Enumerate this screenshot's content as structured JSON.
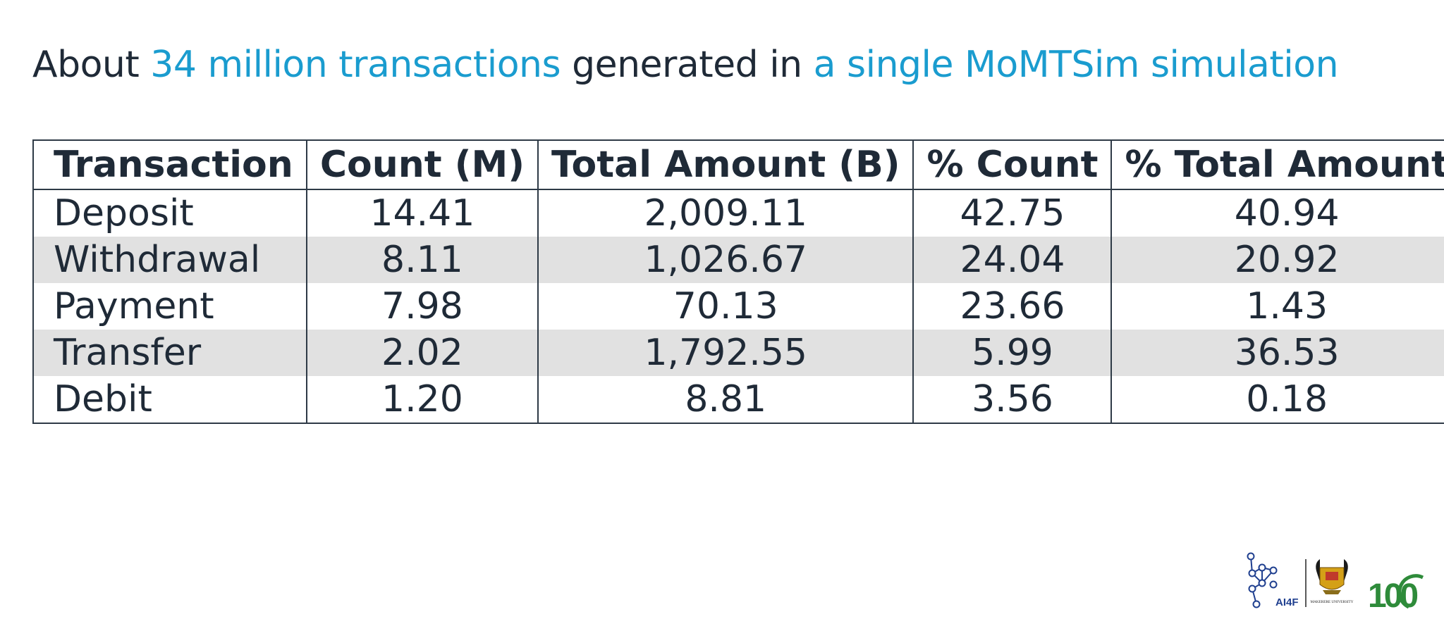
{
  "title": {
    "prefix": "About",
    "highlight1": "34 million transactions",
    "middle": "generated in",
    "highlight2": "a single MoMTSim simulation"
  },
  "table": {
    "headers": [
      "Transaction",
      "Count (M)",
      "Total Amount (B)",
      "% Count",
      "% Total Amount"
    ],
    "rows": [
      [
        "Deposit",
        "14.41",
        "2,009.11",
        "42.75",
        "40.94"
      ],
      [
        "Withdrawal",
        "8.11",
        "1,026.67",
        "24.04",
        "20.92"
      ],
      [
        "Payment",
        "7.98",
        "70.13",
        "23.66",
        "1.43"
      ],
      [
        "Transfer",
        "2.02",
        "1,792.55",
        "5.99",
        "36.53"
      ],
      [
        "Debit",
        "1.20",
        "8.81",
        "3.56",
        "0.18"
      ]
    ]
  },
  "logos": {
    "ai4f_text": "AI4F",
    "university_text": "MAKERERE UNIVERSITY",
    "centenary_text": "100",
    "colors": {
      "ai4f": "#1f3f8f",
      "centenary_green": "#2e8b3a",
      "centenary_red": "#c0392b"
    }
  }
}
